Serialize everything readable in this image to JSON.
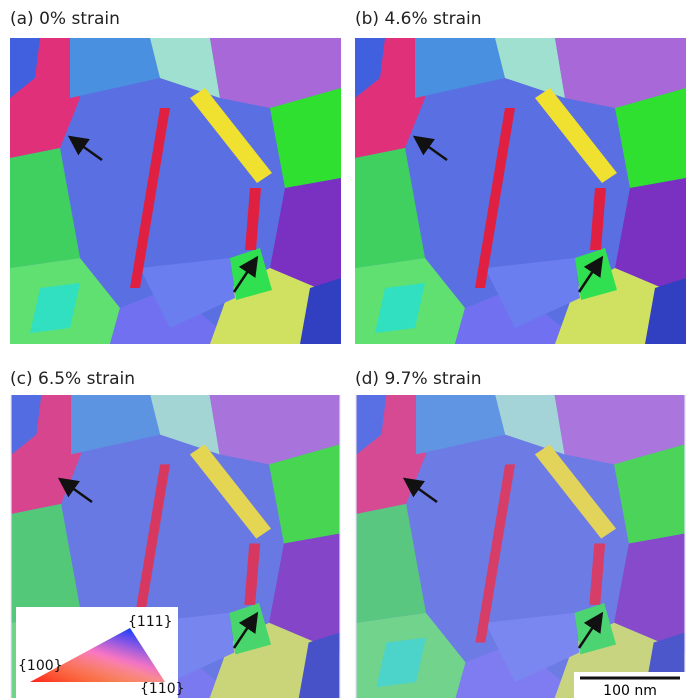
{
  "panels": [
    {
      "label": "(a) 0% strain"
    },
    {
      "label": "(b) 4.6% strain"
    },
    {
      "label": "(c) 6.5% strain"
    },
    {
      "label": "(d) 9.7% strain"
    }
  ],
  "legend": {
    "labels": [
      "{111}",
      "{100}",
      "{110}"
    ]
  },
  "scale_bar": {
    "label": "100 nm"
  }
}
